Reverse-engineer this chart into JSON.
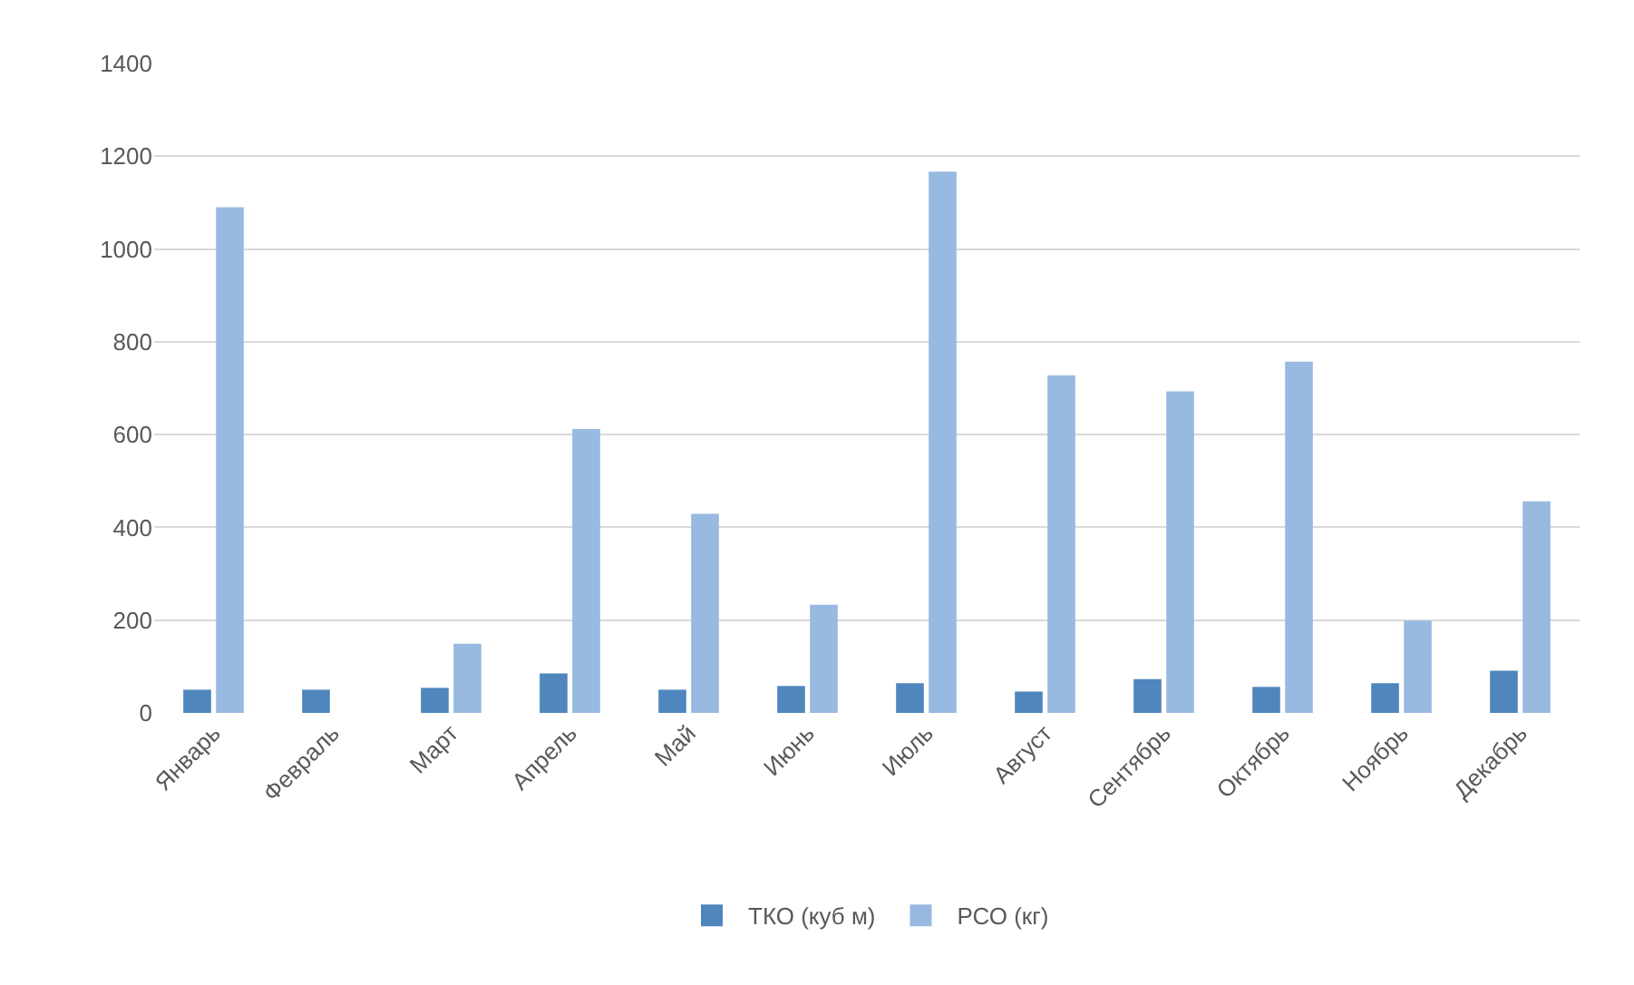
{
  "chart_data": {
    "type": "bar",
    "categories": [
      "Январь",
      "Февраль",
      "Март",
      "Апрель",
      "Май",
      "Июнь",
      "Июль",
      "Август",
      "Сентябрь",
      "Октябрь",
      "Ноябрь",
      "Декабрь"
    ],
    "series": [
      {
        "name": "ТКО (куб м)",
        "color": "#4f86bd",
        "values": [
          50,
          50,
          54,
          85,
          50,
          58,
          64,
          46,
          73,
          56,
          64,
          91
        ]
      },
      {
        "name": "РСО (кг)",
        "color": "#98b9e0",
        "values": [
          1090,
          0,
          149,
          612,
          429,
          233,
          1167,
          728,
          693,
          757,
          199,
          456
        ]
      }
    ],
    "ylim": [
      0,
      1400
    ],
    "yticks": [
      0,
      200,
      400,
      600,
      800,
      1000,
      1200,
      1400
    ],
    "grid": "y",
    "legend": "bottom"
  }
}
